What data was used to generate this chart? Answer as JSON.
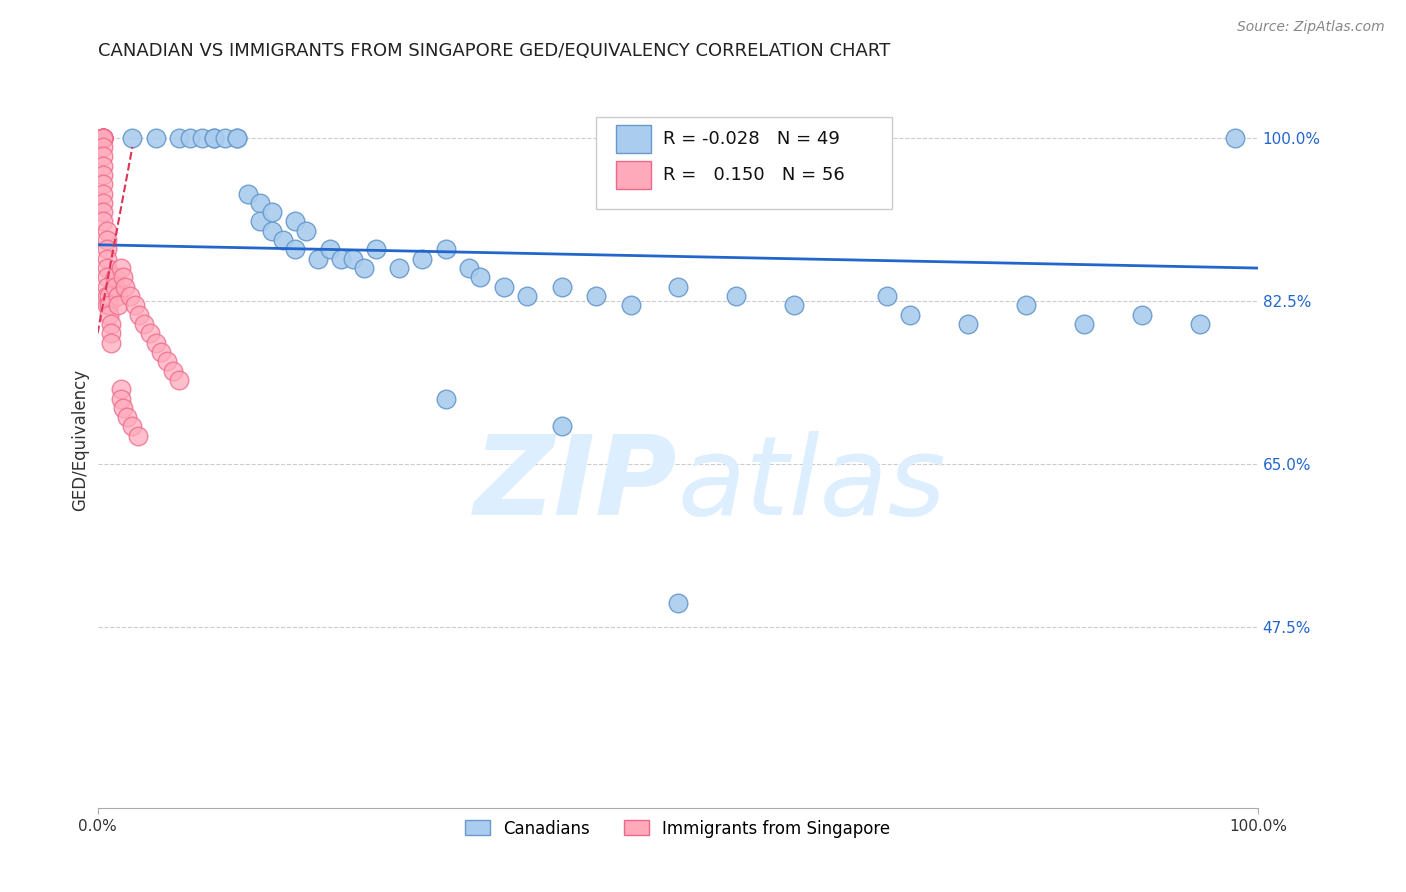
{
  "title": "CANADIAN VS IMMIGRANTS FROM SINGAPORE GED/EQUIVALENCY CORRELATION CHART",
  "source": "Source: ZipAtlas.com",
  "ylabel": "GED/Equivalency",
  "xlim": [
    0.0,
    1.0
  ],
  "ylim": [
    0.28,
    1.07
  ],
  "yticks": [
    1.0,
    0.825,
    0.65,
    0.475
  ],
  "ytick_labels": [
    "100.0%",
    "82.5%",
    "65.0%",
    "47.5%"
  ],
  "xtick_positions": [
    0.0,
    1.0
  ],
  "xtick_labels": [
    "0.0%",
    "100.0%"
  ],
  "background_color": "#ffffff",
  "grid_color": "#cccccc",
  "title_color": "#222222",
  "source_color": "#888888",
  "watermark_color": "#ddeeff",
  "legend_r1": "-0.028",
  "legend_n1": "49",
  "legend_r2": "0.150",
  "legend_n2": "56",
  "canadian_color": "#aaccee",
  "canadian_edge": "#6699cc",
  "singapore_color": "#ffaabb",
  "singapore_edge": "#ee6688",
  "trend_blue": "#2266cc",
  "trend_pink": "#dd3355",
  "blue_trend_x": [
    0.0,
    1.0
  ],
  "blue_trend_y": [
    0.885,
    0.86
  ],
  "pink_trend_x": [
    0.0,
    0.03
  ],
  "pink_trend_y": [
    0.79,
    0.99
  ],
  "canadians_x": [
    0.03,
    0.05,
    0.07,
    0.08,
    0.09,
    0.1,
    0.1,
    0.11,
    0.12,
    0.12,
    0.13,
    0.14,
    0.14,
    0.15,
    0.15,
    0.16,
    0.17,
    0.17,
    0.18,
    0.19,
    0.2,
    0.21,
    0.22,
    0.23,
    0.24,
    0.26,
    0.28,
    0.3,
    0.32,
    0.33,
    0.35,
    0.37,
    0.4,
    0.43,
    0.46,
    0.5,
    0.55,
    0.6,
    0.68,
    0.7,
    0.75,
    0.8,
    0.85,
    0.9,
    0.95,
    0.98,
    0.3,
    0.4,
    0.5
  ],
  "canadians_y": [
    1.0,
    1.0,
    1.0,
    1.0,
    1.0,
    1.0,
    1.0,
    1.0,
    1.0,
    1.0,
    0.94,
    0.93,
    0.91,
    0.92,
    0.9,
    0.89,
    0.88,
    0.91,
    0.9,
    0.87,
    0.88,
    0.87,
    0.87,
    0.86,
    0.88,
    0.86,
    0.87,
    0.88,
    0.86,
    0.85,
    0.84,
    0.83,
    0.84,
    0.83,
    0.82,
    0.84,
    0.83,
    0.82,
    0.83,
    0.81,
    0.8,
    0.82,
    0.8,
    0.81,
    0.8,
    1.0,
    0.72,
    0.69,
    0.5
  ],
  "singapore_x": [
    0.005,
    0.005,
    0.005,
    0.005,
    0.005,
    0.005,
    0.005,
    0.005,
    0.005,
    0.005,
    0.005,
    0.005,
    0.005,
    0.005,
    0.005,
    0.005,
    0.005,
    0.005,
    0.008,
    0.008,
    0.008,
    0.008,
    0.008,
    0.008,
    0.008,
    0.008,
    0.008,
    0.01,
    0.01,
    0.01,
    0.012,
    0.012,
    0.012,
    0.015,
    0.015,
    0.018,
    0.018,
    0.02,
    0.022,
    0.024,
    0.028,
    0.032,
    0.036,
    0.04,
    0.045,
    0.05,
    0.055,
    0.06,
    0.065,
    0.07,
    0.02,
    0.02,
    0.022,
    0.025,
    0.03,
    0.035
  ],
  "singapore_y": [
    1.0,
    1.0,
    1.0,
    1.0,
    1.0,
    1.0,
    1.0,
    1.0,
    1.0,
    0.99,
    0.98,
    0.97,
    0.96,
    0.95,
    0.94,
    0.93,
    0.92,
    0.91,
    0.9,
    0.89,
    0.88,
    0.87,
    0.86,
    0.85,
    0.84,
    0.83,
    0.82,
    0.83,
    0.82,
    0.81,
    0.8,
    0.79,
    0.78,
    0.85,
    0.84,
    0.83,
    0.82,
    0.86,
    0.85,
    0.84,
    0.83,
    0.82,
    0.81,
    0.8,
    0.79,
    0.78,
    0.77,
    0.76,
    0.75,
    0.74,
    0.73,
    0.72,
    0.71,
    0.7,
    0.69,
    0.68
  ]
}
